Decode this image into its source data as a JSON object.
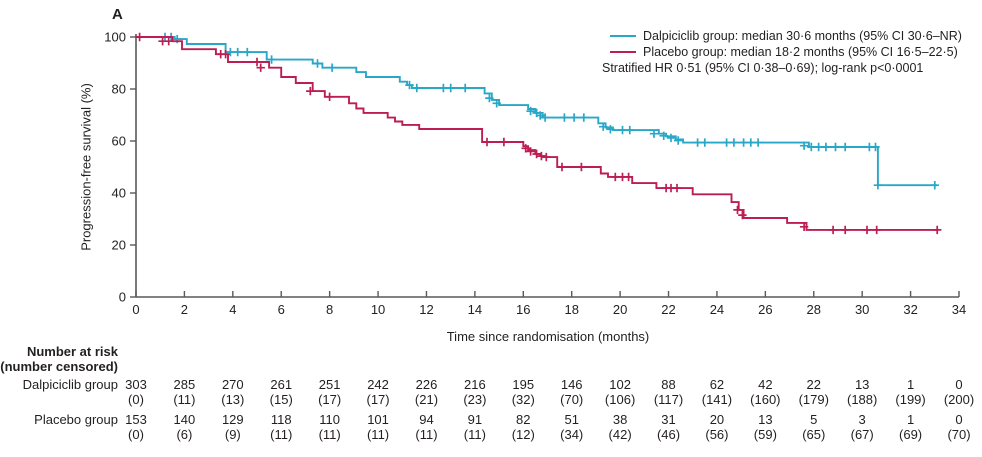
{
  "panel_label": "A",
  "colors": {
    "dalpiciclib": "#29a7c7",
    "placebo": "#bc1e54",
    "axis": "#58595b",
    "text": "#231f20"
  },
  "legend": {
    "items": [
      {
        "label": "Dalpiciclib group: median 30·6 months (95% CI 30·6–NR)",
        "color": "#29a7c7"
      },
      {
        "label": "Placebo group: median 18·2 months (95% CI 16·5–22·5)",
        "color": "#bc1e54"
      }
    ],
    "note": "Stratified HR 0·51 (95% CI 0·38–0·69); log-rank p<0·0001"
  },
  "chart_data": {
    "type": "line",
    "subtype": "kaplan-meier-step",
    "xlabel": "Time since randomisation (months)",
    "ylabel": "Progression-free survival (%)",
    "xlim": [
      0,
      34
    ],
    "ylim": [
      0,
      100
    ],
    "xticks": [
      0,
      2,
      4,
      6,
      8,
      10,
      12,
      14,
      16,
      18,
      20,
      22,
      24,
      26,
      28,
      30,
      32,
      34
    ],
    "yticks": [
      0,
      20,
      40,
      60,
      80,
      100
    ],
    "grid": false,
    "legend_position": "top-right",
    "series": [
      {
        "name": "Dalpiciclib group",
        "color": "#29a7c7",
        "end_time": 33.1,
        "steps": [
          [
            0,
            100
          ],
          [
            1.6,
            99.2
          ],
          [
            2.1,
            97.3
          ],
          [
            3.7,
            94.2
          ],
          [
            5.4,
            91.3
          ],
          [
            7.3,
            89.8
          ],
          [
            7.7,
            88.2
          ],
          [
            9.1,
            86.5
          ],
          [
            9.5,
            84.6
          ],
          [
            10.9,
            82.8
          ],
          [
            11.2,
            81.5
          ],
          [
            11.4,
            80.4
          ],
          [
            14.4,
            78.3
          ],
          [
            14.7,
            75.8
          ],
          [
            15.0,
            73.8
          ],
          [
            16.2,
            72.3
          ],
          [
            16.5,
            70.8
          ],
          [
            16.8,
            69.0
          ],
          [
            19.1,
            66.8
          ],
          [
            19.4,
            65.2
          ],
          [
            19.7,
            64.2
          ],
          [
            21.6,
            62.8
          ],
          [
            21.9,
            61.8
          ],
          [
            22.3,
            60.6
          ],
          [
            22.6,
            59.4
          ],
          [
            27.8,
            57.7
          ],
          [
            30.65,
            43.0
          ]
        ],
        "censors": [
          [
            1.2,
            100
          ],
          [
            1.45,
            100
          ],
          [
            1.7,
            99.2
          ],
          [
            3.9,
            94.2
          ],
          [
            4.2,
            94.2
          ],
          [
            4.6,
            94.2
          ],
          [
            5.6,
            91.3
          ],
          [
            7.5,
            89.8
          ],
          [
            8.1,
            88.2
          ],
          [
            11.3,
            81.5
          ],
          [
            11.6,
            80.4
          ],
          [
            12.7,
            80.4
          ],
          [
            13.0,
            80.4
          ],
          [
            13.6,
            80.4
          ],
          [
            14.6,
            76.5
          ],
          [
            14.9,
            74.5
          ],
          [
            16.3,
            71.5
          ],
          [
            16.55,
            70.8
          ],
          [
            16.7,
            69.8
          ],
          [
            16.9,
            69.0
          ],
          [
            17.7,
            69.0
          ],
          [
            18.1,
            69.0
          ],
          [
            18.5,
            69.0
          ],
          [
            19.3,
            65.5
          ],
          [
            19.6,
            64.5
          ],
          [
            20.1,
            64.2
          ],
          [
            20.4,
            64.2
          ],
          [
            21.4,
            62.8
          ],
          [
            21.8,
            62.0
          ],
          [
            22.1,
            61.2
          ],
          [
            22.4,
            60.2
          ],
          [
            23.2,
            59.4
          ],
          [
            23.5,
            59.4
          ],
          [
            24.4,
            59.4
          ],
          [
            24.7,
            59.4
          ],
          [
            25.1,
            59.4
          ],
          [
            25.4,
            59.4
          ],
          [
            25.7,
            59.4
          ],
          [
            27.6,
            58.2
          ],
          [
            27.9,
            57.7
          ],
          [
            28.2,
            57.7
          ],
          [
            28.5,
            57.7
          ],
          [
            28.9,
            57.7
          ],
          [
            29.3,
            57.7
          ],
          [
            30.3,
            57.7
          ],
          [
            30.55,
            57.7
          ],
          [
            30.65,
            43.0
          ],
          [
            33.0,
            43.0
          ]
        ]
      },
      {
        "name": "Placebo group",
        "color": "#bc1e54",
        "end_time": 33.15,
        "steps": [
          [
            0,
            100
          ],
          [
            1.5,
            98.4
          ],
          [
            1.9,
            95.3
          ],
          [
            3.3,
            93.4
          ],
          [
            3.8,
            90.4
          ],
          [
            5.5,
            88.2
          ],
          [
            6.0,
            84.6
          ],
          [
            6.6,
            82.3
          ],
          [
            7.3,
            79.2
          ],
          [
            7.8,
            77.0
          ],
          [
            8.8,
            74.5
          ],
          [
            9.1,
            72.5
          ],
          [
            9.4,
            70.8
          ],
          [
            10.4,
            69.0
          ],
          [
            10.7,
            67.5
          ],
          [
            11.0,
            66.2
          ],
          [
            11.7,
            64.6
          ],
          [
            14.3,
            59.6
          ],
          [
            16.0,
            58.0
          ],
          [
            16.2,
            56.5
          ],
          [
            16.5,
            55.0
          ],
          [
            16.7,
            54.2
          ],
          [
            16.9,
            53.8
          ],
          [
            17.4,
            50.0
          ],
          [
            19.2,
            47.5
          ],
          [
            19.5,
            46.2
          ],
          [
            20.5,
            43.8
          ],
          [
            21.5,
            41.9
          ],
          [
            23.0,
            39.5
          ],
          [
            24.6,
            36.5
          ],
          [
            24.9,
            33.5
          ],
          [
            25.1,
            30.4
          ],
          [
            26.9,
            28.5
          ],
          [
            27.7,
            25.8
          ]
        ],
        "censors": [
          [
            0.15,
            100
          ],
          [
            1.1,
            98.4
          ],
          [
            1.35,
            98.4
          ],
          [
            3.5,
            93.4
          ],
          [
            3.7,
            93.4
          ],
          [
            5.0,
            90.4
          ],
          [
            5.15,
            88.2
          ],
          [
            7.2,
            79.2
          ],
          [
            8.0,
            77.0
          ],
          [
            14.5,
            59.6
          ],
          [
            15.2,
            59.6
          ],
          [
            16.1,
            57.2
          ],
          [
            16.3,
            56.0
          ],
          [
            16.55,
            55.0
          ],
          [
            16.75,
            54.2
          ],
          [
            16.95,
            53.8
          ],
          [
            17.6,
            50.0
          ],
          [
            18.4,
            50.0
          ],
          [
            19.8,
            46.2
          ],
          [
            20.1,
            46.2
          ],
          [
            20.35,
            46.2
          ],
          [
            21.9,
            41.9
          ],
          [
            22.1,
            41.9
          ],
          [
            22.35,
            41.9
          ],
          [
            24.85,
            33.5
          ],
          [
            25.05,
            31.5
          ],
          [
            27.6,
            27.0
          ],
          [
            28.8,
            25.8
          ],
          [
            29.3,
            25.8
          ],
          [
            30.2,
            25.8
          ],
          [
            30.6,
            25.8
          ],
          [
            33.1,
            25.8
          ]
        ]
      }
    ]
  },
  "risk_table": {
    "header_line1": "Number at risk",
    "header_line2": "(number censored)",
    "timepoints": [
      0,
      2,
      4,
      6,
      8,
      10,
      12,
      14,
      16,
      18,
      20,
      22,
      24,
      26,
      28,
      30,
      32,
      34
    ],
    "rows": [
      {
        "label": "Dalpiciclib group",
        "at_risk": [
          303,
          285,
          270,
          261,
          251,
          242,
          226,
          216,
          195,
          146,
          102,
          88,
          62,
          42,
          22,
          13,
          1,
          0
        ],
        "censored": [
          0,
          11,
          13,
          15,
          17,
          17,
          21,
          23,
          32,
          70,
          106,
          117,
          141,
          160,
          179,
          188,
          199,
          200
        ]
      },
      {
        "label": "Placebo group",
        "at_risk": [
          153,
          140,
          129,
          118,
          110,
          101,
          94,
          91,
          82,
          51,
          38,
          31,
          20,
          13,
          5,
          3,
          1,
          0
        ],
        "censored": [
          0,
          6,
          9,
          11,
          11,
          11,
          11,
          11,
          12,
          34,
          42,
          46,
          56,
          59,
          65,
          67,
          69,
          70
        ]
      }
    ]
  }
}
